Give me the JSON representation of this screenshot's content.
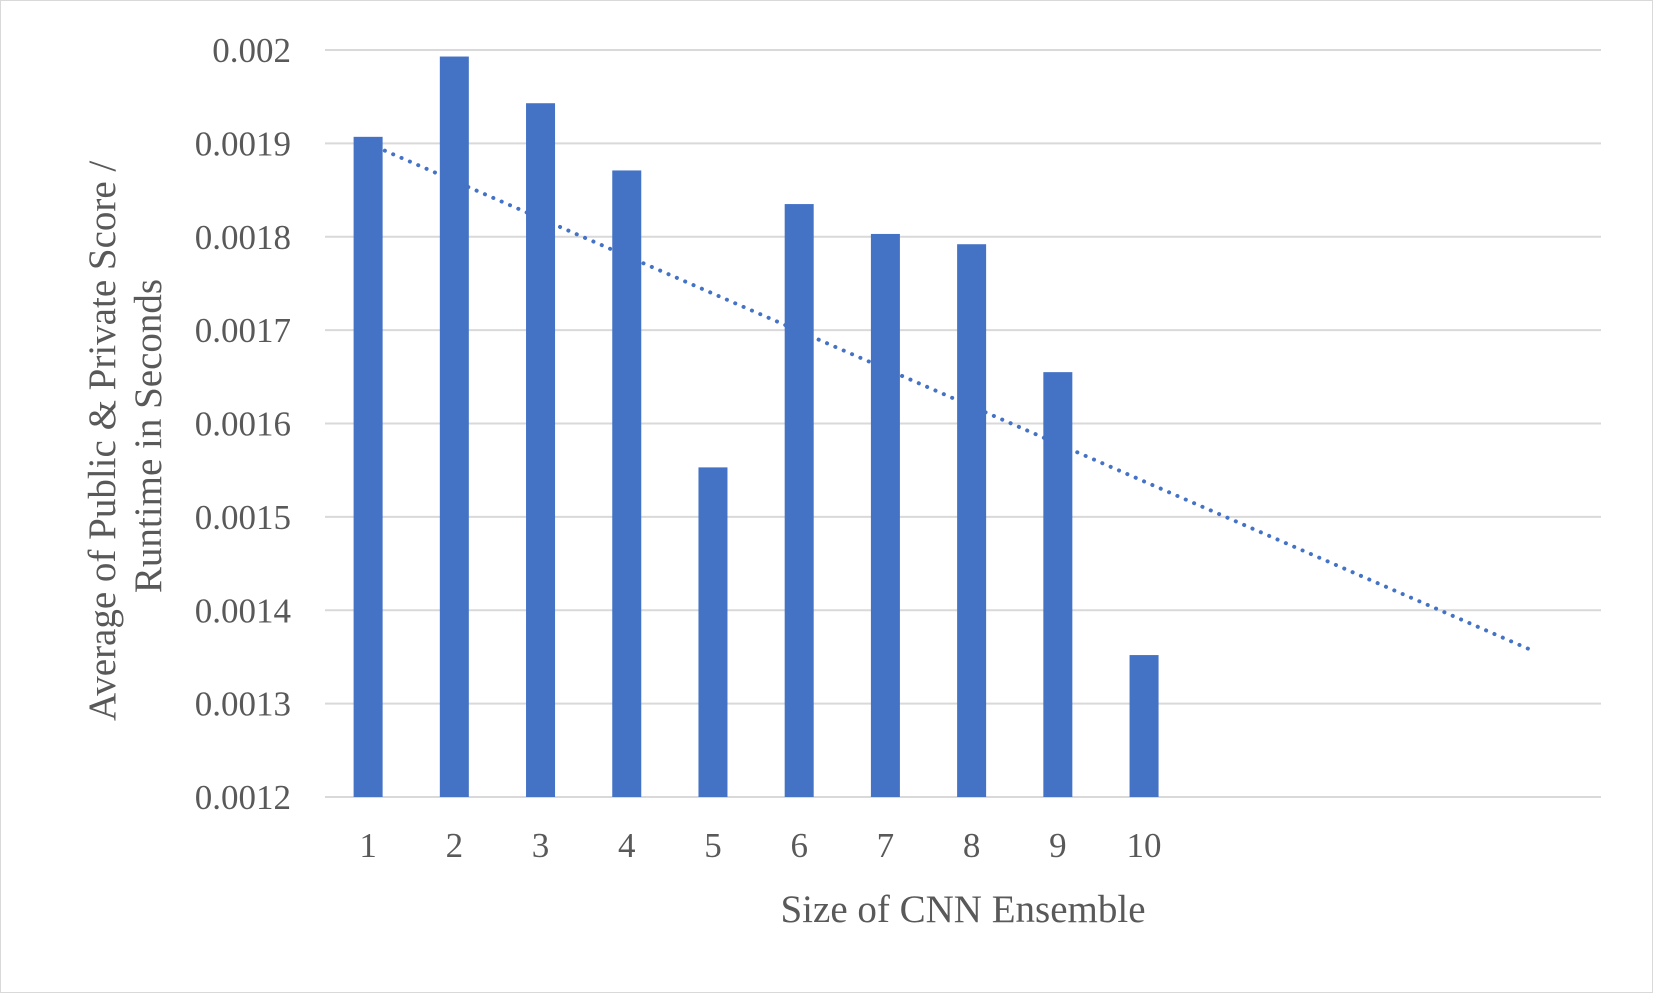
{
  "chart_data": {
    "type": "bar",
    "categories": [
      "1",
      "2",
      "3",
      "4",
      "5",
      "6",
      "7",
      "8",
      "9",
      "10"
    ],
    "values": [
      0.001907,
      0.001993,
      0.001943,
      0.001871,
      0.001553,
      0.001835,
      0.001803,
      0.001792,
      0.001655,
      0.001352
    ],
    "xlabel": "Size of CNN Ensemble",
    "ylabel_lines": [
      "Average of Public & Private Score /",
      "Runtime in Seconds"
    ],
    "ylim": [
      0.0012,
      0.002
    ],
    "yticks": [
      "0.0012",
      "0.0013",
      "0.0014",
      "0.0015",
      "0.0016",
      "0.0017",
      "0.0018",
      "0.0019",
      "0.002"
    ],
    "trendline": {
      "type": "linear",
      "style": "dotted",
      "start": {
        "x": 1,
        "y": 0.0019
      },
      "end": {
        "x": 14.5,
        "y": 0.001357
      }
    },
    "grid": true,
    "legend": "none",
    "colors": {
      "bar": "#4472c4",
      "trendline": "#4472c4",
      "grid": "#d9d9d9"
    }
  }
}
